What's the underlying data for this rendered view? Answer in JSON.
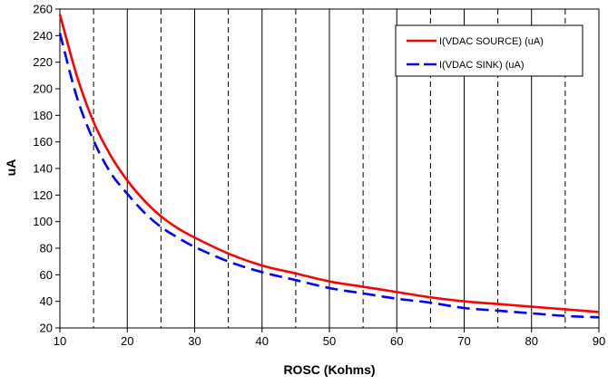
{
  "chart_data": {
    "type": "line",
    "title": "",
    "xlabel": "ROSC (Kohms)",
    "ylabel": "uA",
    "xlim": [
      10,
      90
    ],
    "ylim": [
      20,
      260
    ],
    "x_ticks": [
      10,
      20,
      30,
      40,
      50,
      60,
      70,
      80,
      90
    ],
    "y_ticks": [
      20,
      40,
      60,
      80,
      100,
      120,
      140,
      160,
      180,
      200,
      220,
      240,
      260
    ],
    "grid": {
      "major_x": "solid",
      "minor_x": "dashed",
      "minor_x_values": [
        15,
        25,
        35,
        45,
        55,
        65,
        75,
        85
      ],
      "y": "none"
    },
    "legend_position": "top-right",
    "x": [
      10,
      12.5,
      15,
      17.5,
      20,
      22.5,
      25,
      27.5,
      30,
      35,
      40,
      45,
      50,
      55,
      60,
      65,
      70,
      75,
      80,
      85,
      90
    ],
    "series": [
      {
        "name": "I(VDAC SOURCE) (uA)",
        "color": "#ff0000",
        "style": "solid",
        "values": [
          256,
          210,
          175,
          150,
          131,
          116,
          104,
          95,
          88,
          76,
          67,
          61,
          55,
          51,
          47,
          43,
          40,
          38,
          36,
          34,
          32
        ]
      },
      {
        "name": "I(VDAC SINK) (uA)",
        "color": "#0000ff",
        "style": "dashed",
        "values": [
          242,
          194,
          161,
          137,
          121,
          107,
          96,
          88,
          81,
          70,
          62,
          56,
          50,
          46,
          42,
          39,
          35,
          33,
          31,
          29,
          28
        ]
      }
    ]
  }
}
